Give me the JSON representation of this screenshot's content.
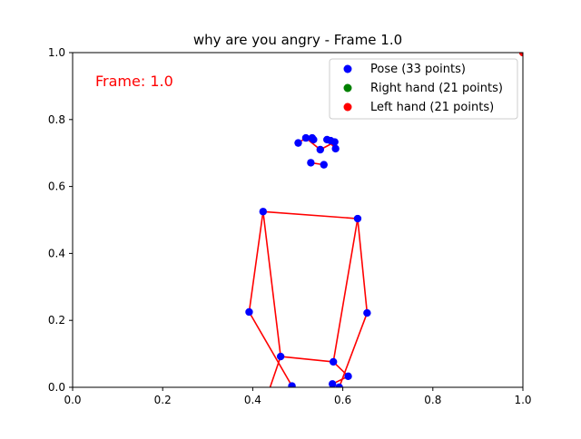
{
  "chart_data": {
    "type": "scatter",
    "title": "why are you angry - Frame 1.0",
    "annotation": "Frame: 1.0",
    "xlim": [
      0,
      1
    ],
    "ylim": [
      0,
      1
    ],
    "xticks": [
      "0.0",
      "0.2",
      "0.4",
      "0.6",
      "0.8",
      "1.0"
    ],
    "yticks": [
      "0.0",
      "0.2",
      "0.4",
      "0.6",
      "0.8",
      "1.0"
    ],
    "grid": false,
    "legend_position": "top-right",
    "legend": [
      {
        "label": "Pose (33 points)",
        "color": "#0000ff"
      },
      {
        "label": "Right hand (21 points)",
        "color": "#008000"
      },
      {
        "label": "Left hand (21 points)",
        "color": "#ff0000"
      }
    ],
    "pose_points": [
      [
        0.423,
        0.525
      ],
      [
        0.633,
        0.504
      ],
      [
        0.392,
        0.225
      ],
      [
        0.654,
        0.222
      ],
      [
        0.462,
        0.092
      ],
      [
        0.579,
        0.076
      ],
      [
        0.487,
        0.004
      ],
      [
        0.612,
        0.033
      ],
      [
        0.577,
        0.01
      ],
      [
        0.592,
        0.0
      ],
      [
        0.501,
        0.73
      ],
      [
        0.518,
        0.745
      ],
      [
        0.532,
        0.745
      ],
      [
        0.535,
        0.74
      ],
      [
        0.55,
        0.71
      ],
      [
        0.565,
        0.74
      ],
      [
        0.573,
        0.737
      ],
      [
        0.582,
        0.733
      ],
      [
        0.584,
        0.713
      ],
      [
        0.529,
        0.671
      ],
      [
        0.558,
        0.665
      ]
    ],
    "pose_lines": [
      [
        [
          0.423,
          0.525
        ],
        [
          0.633,
          0.504
        ]
      ],
      [
        [
          0.423,
          0.525
        ],
        [
          0.392,
          0.225
        ]
      ],
      [
        [
          0.392,
          0.225
        ],
        [
          0.487,
          0.004
        ]
      ],
      [
        [
          0.423,
          0.525
        ],
        [
          0.462,
          0.092
        ]
      ],
      [
        [
          0.633,
          0.504
        ],
        [
          0.654,
          0.222
        ]
      ],
      [
        [
          0.654,
          0.222
        ],
        [
          0.592,
          0.0
        ]
      ],
      [
        [
          0.633,
          0.504
        ],
        [
          0.579,
          0.076
        ]
      ],
      [
        [
          0.462,
          0.092
        ],
        [
          0.579,
          0.076
        ]
      ],
      [
        [
          0.462,
          0.092
        ],
        [
          0.436,
          -0.01
        ]
      ],
      [
        [
          0.579,
          0.076
        ],
        [
          0.612,
          0.033
        ]
      ],
      [
        [
          0.612,
          0.033
        ],
        [
          0.577,
          0.01
        ]
      ],
      [
        [
          0.518,
          0.745
        ],
        [
          0.55,
          0.71
        ]
      ],
      [
        [
          0.55,
          0.71
        ],
        [
          0.582,
          0.733
        ]
      ],
      [
        [
          0.501,
          0.73
        ],
        [
          0.518,
          0.745
        ]
      ],
      [
        [
          0.565,
          0.74
        ],
        [
          0.584,
          0.713
        ]
      ],
      [
        [
          0.529,
          0.671
        ],
        [
          0.558,
          0.665
        ]
      ]
    ],
    "left_hand_points": [
      [
        1.0,
        1.0
      ]
    ]
  }
}
